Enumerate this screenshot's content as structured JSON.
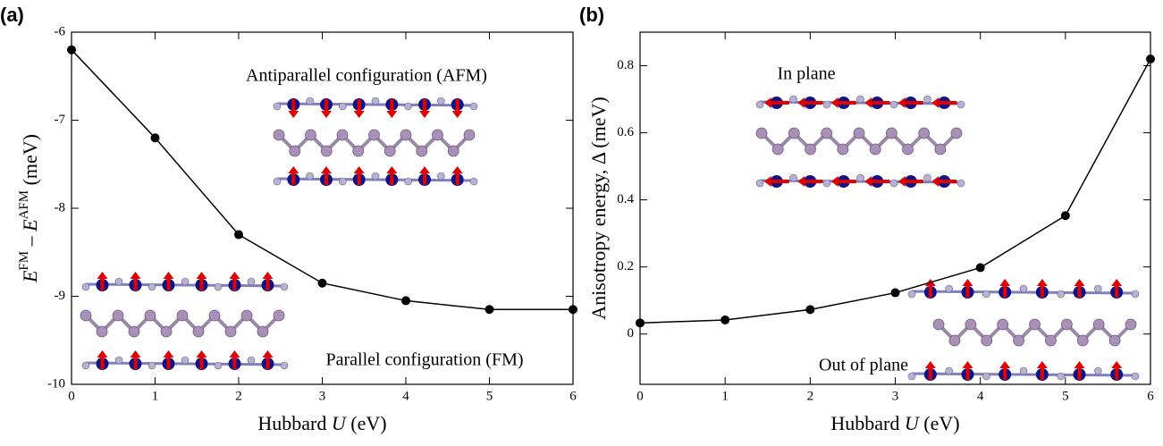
{
  "chart_data": [
    {
      "type": "line",
      "panel_label": "(a)",
      "xlabel": [
        "Hubbard ",
        "U",
        " (eV)"
      ],
      "ylabel": [
        "E",
        "FM",
        " – ",
        "E",
        "AFM",
        " (meV)"
      ],
      "x": [
        0,
        1,
        2,
        3,
        4,
        5,
        6
      ],
      "values": [
        -6.2,
        -7.2,
        -8.3,
        -8.85,
        -9.05,
        -9.15,
        -9.15
      ],
      "color": "#000000",
      "xlim": [
        0,
        6
      ],
      "xticks": [
        0,
        1,
        2,
        3,
        4,
        5,
        6
      ],
      "ylim": [
        -10,
        -6
      ],
      "yticks": [
        -10,
        -9,
        -8,
        -7,
        -6
      ],
      "annotations": [
        "Antiparallel configuration (AFM)",
        "Parallel configuration (FM)"
      ]
    },
    {
      "type": "line",
      "panel_label": "(b)",
      "xlabel": [
        "Hubbard ",
        "U",
        " (eV)"
      ],
      "ylabel": [
        "Anisotropy energy, Δ (meV)"
      ],
      "x": [
        0,
        1,
        2,
        3,
        4,
        5,
        6
      ],
      "values": [
        0.033,
        0.042,
        0.073,
        0.123,
        0.198,
        0.353,
        0.82
      ],
      "color": "#000000",
      "xlim": [
        0,
        6
      ],
      "xticks": [
        0,
        1,
        2,
        3,
        4,
        5,
        6
      ],
      "ylim": [
        -0.15,
        0.9
      ],
      "yticks": [
        0,
        0.2,
        0.4,
        0.6,
        0.8
      ],
      "annotations": [
        "In plane",
        "Out of plane"
      ]
    }
  ]
}
